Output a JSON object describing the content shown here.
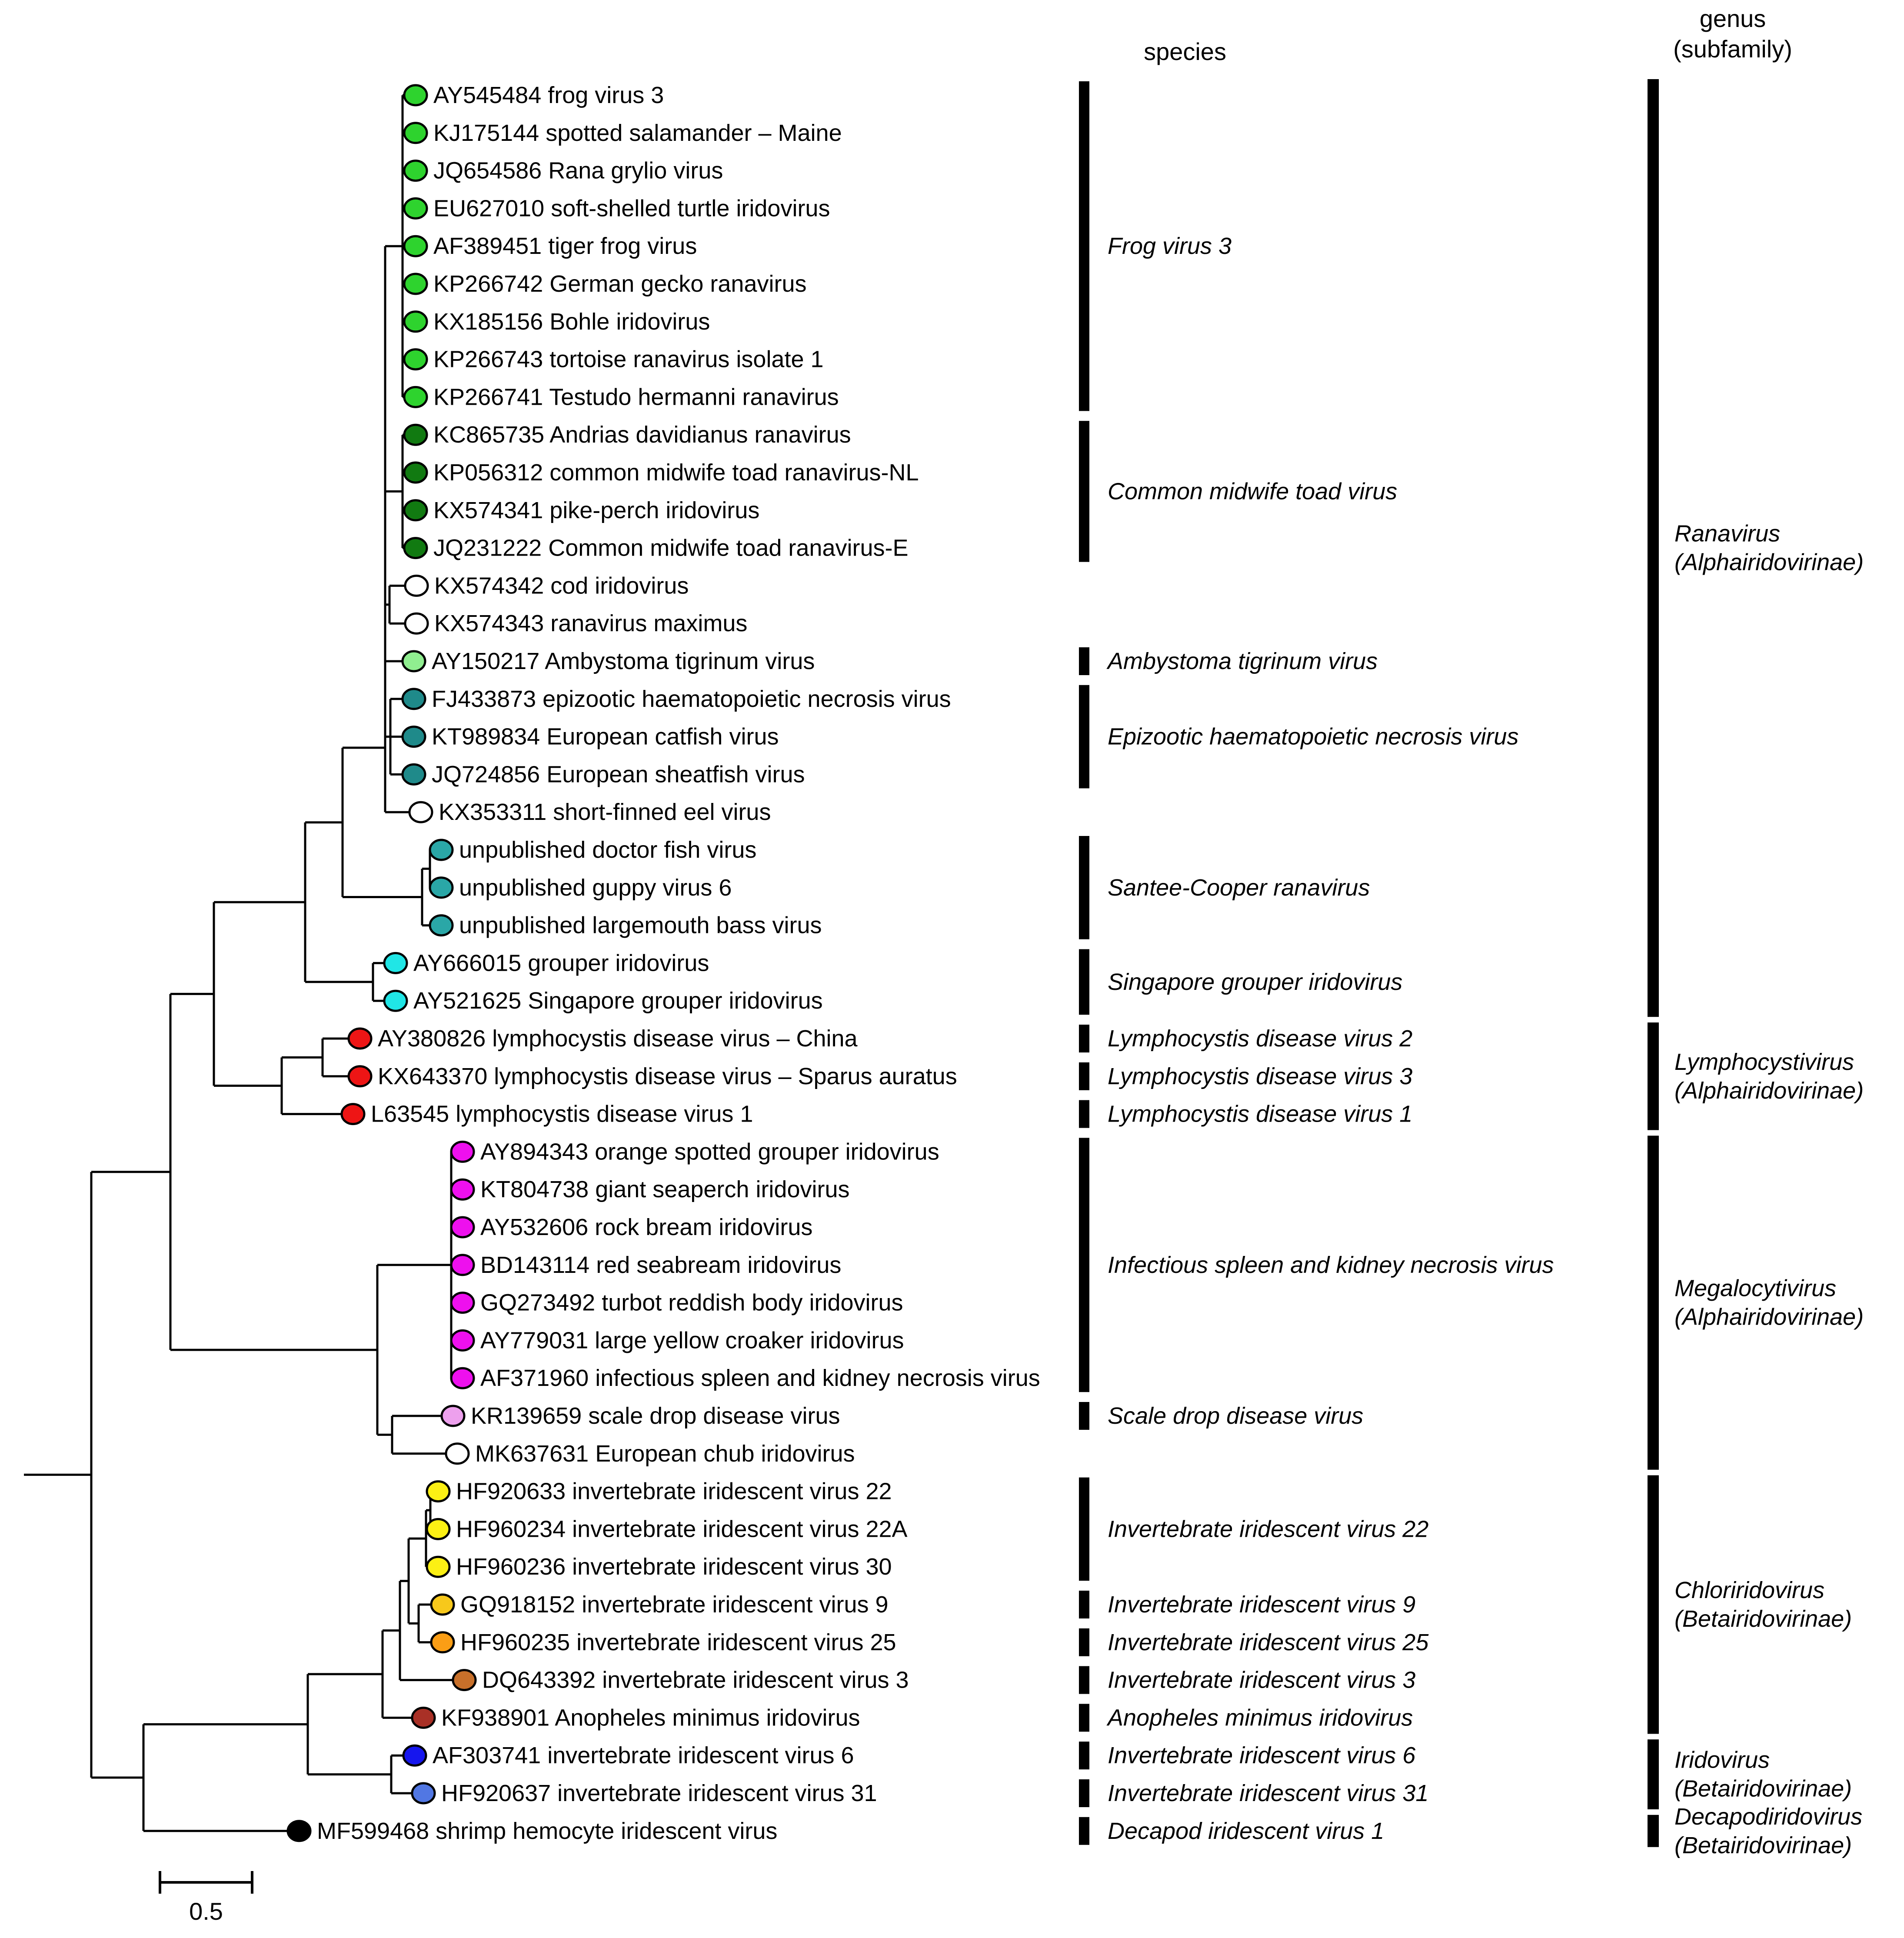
{
  "figure": {
    "species_header": "species",
    "genus_header_line1": "genus",
    "genus_header_line2": "(subfamily)",
    "scale_bar_label": "0.5",
    "bar_color": "#000000",
    "branch_color": "#000000"
  },
  "taxa": [
    {
      "label": "AY545484 frog virus 3",
      "color": "#2ED32E"
    },
    {
      "label": "KJ175144 spotted salamander – Maine",
      "color": "#2ED32E"
    },
    {
      "label": "JQ654586 Rana grylio virus",
      "color": "#2ED32E"
    },
    {
      "label": "EU627010 soft-shelled turtle iridovirus",
      "color": "#2ED32E"
    },
    {
      "label": "AF389451 tiger frog virus",
      "color": "#2ED32E"
    },
    {
      "label": "KP266742 German gecko ranavirus",
      "color": "#2ED32E"
    },
    {
      "label": "KX185156 Bohle iridovirus",
      "color": "#2ED32E"
    },
    {
      "label": "KP266743 tortoise ranavirus isolate 1",
      "color": "#2ED32E"
    },
    {
      "label": "KP266741 Testudo hermanni ranavirus",
      "color": "#2ED32E"
    },
    {
      "label": "KC865735 Andrias davidianus ranavirus",
      "color": "#117A11"
    },
    {
      "label": "KP056312 common midwife toad ranavirus-NL",
      "color": "#117A11"
    },
    {
      "label": "KX574341 pike-perch iridovirus",
      "color": "#117A11"
    },
    {
      "label": "JQ231222 Common midwife toad ranavirus-E",
      "color": "#117A11"
    },
    {
      "label": "KX574342 cod iridovirus",
      "color": "#FFFFFF"
    },
    {
      "label": "KX574343 ranavirus maximus",
      "color": "#FFFFFF"
    },
    {
      "label": "AY150217 Ambystoma tigrinum virus",
      "color": "#90EE90"
    },
    {
      "label": "FJ433873 epizootic haematopoietic necrosis virus",
      "color": "#1F8A8A"
    },
    {
      "label": "KT989834 European catfish virus",
      "color": "#1F8A8A"
    },
    {
      "label": "JQ724856 European sheatfish virus",
      "color": "#1F8A8A"
    },
    {
      "label": "KX353311 short-finned eel virus",
      "color": "#FFFFFF"
    },
    {
      "label": "unpublished doctor fish virus",
      "color": "#2AA7A7"
    },
    {
      "label": "unpublished guppy virus 6",
      "color": "#2AA7A7"
    },
    {
      "label": "unpublished largemouth bass virus",
      "color": "#2AA7A7"
    },
    {
      "label": "AY666015 grouper iridovirus",
      "color": "#20E6E6"
    },
    {
      "label": "AY521625 Singapore grouper iridovirus",
      "color": "#20E6E6"
    },
    {
      "label": "AY380826 lymphocystis disease virus – China",
      "color": "#EE1515"
    },
    {
      "label": "KX643370 lymphocystis disease virus – Sparus auratus",
      "color": "#EE1515"
    },
    {
      "label": "L63545 lymphocystis disease virus 1",
      "color": "#EE1515"
    },
    {
      "label": "AY894343 orange spotted grouper iridovirus",
      "color": "#EE10EE"
    },
    {
      "label": "KT804738 giant seaperch iridovirus",
      "color": "#EE10EE"
    },
    {
      "label": "AY532606 rock bream iridovirus",
      "color": "#EE10EE"
    },
    {
      "label": "BD143114 red seabream iridovirus",
      "color": "#EE10EE"
    },
    {
      "label": "GQ273492 turbot reddish body iridovirus",
      "color": "#EE10EE"
    },
    {
      "label": "AY779031 large yellow croaker iridovirus",
      "color": "#EE10EE"
    },
    {
      "label": "AF371960 infectious spleen and kidney necrosis virus",
      "color": "#EE10EE"
    },
    {
      "label": "KR139659 scale drop disease virus",
      "color": "#EDA0ED"
    },
    {
      "label": "MK637631 European chub iridovirus",
      "color": "#FFFFFF"
    },
    {
      "label": "HF920633 invertebrate iridescent virus 22",
      "color": "#FCF014"
    },
    {
      "label": "HF960234 invertebrate iridescent virus 22A",
      "color": "#FCF014"
    },
    {
      "label": "HF960236 invertebrate iridescent virus 30",
      "color": "#FCF014"
    },
    {
      "label": "GQ918152 invertebrate iridescent virus 9",
      "color": "#F7C81B"
    },
    {
      "label": "HF960235 invertebrate iridescent virus 25",
      "color": "#FB9E15"
    },
    {
      "label": "DQ643392 invertebrate iridescent virus 3",
      "color": "#C8702A"
    },
    {
      "label": "KF938901 Anopheles minimus iridovirus",
      "color": "#A93026"
    },
    {
      "label": "AF303741 invertebrate iridescent virus 6",
      "color": "#1616EE"
    },
    {
      "label": "HF920637 invertebrate iridescent virus 31",
      "color": "#5177E3"
    },
    {
      "label": "MF599468 shrimp hemocyte iridescent virus",
      "color": "#000000"
    }
  ],
  "species": [
    {
      "name": "Frog virus 3",
      "rows": [
        1,
        9
      ]
    },
    {
      "name": "Common midwife toad virus",
      "rows": [
        10,
        13
      ]
    },
    {
      "name": "Ambystoma tigrinum virus",
      "rows": [
        16,
        16
      ]
    },
    {
      "name": "Epizootic haematopoietic necrosis virus",
      "rows": [
        17,
        19
      ]
    },
    {
      "name": "Santee-Cooper ranavirus",
      "rows": [
        21,
        23
      ]
    },
    {
      "name": "Singapore grouper iridovirus",
      "rows": [
        24,
        25
      ]
    },
    {
      "name": "Lymphocystis disease virus 2",
      "rows": [
        26,
        26
      ]
    },
    {
      "name": "Lymphocystis disease virus 3",
      "rows": [
        27,
        27
      ]
    },
    {
      "name": "Lymphocystis disease virus 1",
      "rows": [
        28,
        28
      ]
    },
    {
      "name": "Infectious spleen and kidney necrosis virus",
      "rows": [
        29,
        35
      ]
    },
    {
      "name": "Scale drop disease virus",
      "rows": [
        36,
        36
      ]
    },
    {
      "name": "Invertebrate iridescent virus 22",
      "rows": [
        38,
        40
      ]
    },
    {
      "name": "Invertebrate iridescent virus 9",
      "rows": [
        41,
        41
      ]
    },
    {
      "name": "Invertebrate iridescent virus 25",
      "rows": [
        42,
        42
      ]
    },
    {
      "name": "Invertebrate iridescent virus 3",
      "rows": [
        43,
        43
      ]
    },
    {
      "name": "Anopheles minimus iridovirus",
      "rows": [
        44,
        44
      ]
    },
    {
      "name": "Invertebrate iridescent virus 6",
      "rows": [
        45,
        45
      ]
    },
    {
      "name": "Invertebrate iridescent virus 31",
      "rows": [
        46,
        46
      ]
    },
    {
      "name": "Decapod iridescent virus 1",
      "rows": [
        47,
        47
      ]
    }
  ],
  "genera": [
    {
      "genus": "Ranavirus",
      "subfamily": "(Alphairidovirinae)",
      "rows": [
        1,
        25
      ]
    },
    {
      "genus": "Lymphocystivirus",
      "subfamily": "(Alphairidovirinae)",
      "rows": [
        26,
        28
      ]
    },
    {
      "genus": "Megalocytivirus",
      "subfamily": "(Alphairidovirinae)",
      "rows": [
        29,
        37
      ]
    },
    {
      "genus": "Chloriridovirus",
      "subfamily": "(Betairidovirinae)",
      "rows": [
        38,
        44
      ]
    },
    {
      "genus": "Iridovirus",
      "subfamily": "(Betairidovirinae)",
      "rows": [
        45,
        46
      ]
    },
    {
      "genus": "Decapodiridovirus",
      "subfamily": "(Betairidovirinae)",
      "rows": [
        47,
        47
      ]
    }
  ]
}
